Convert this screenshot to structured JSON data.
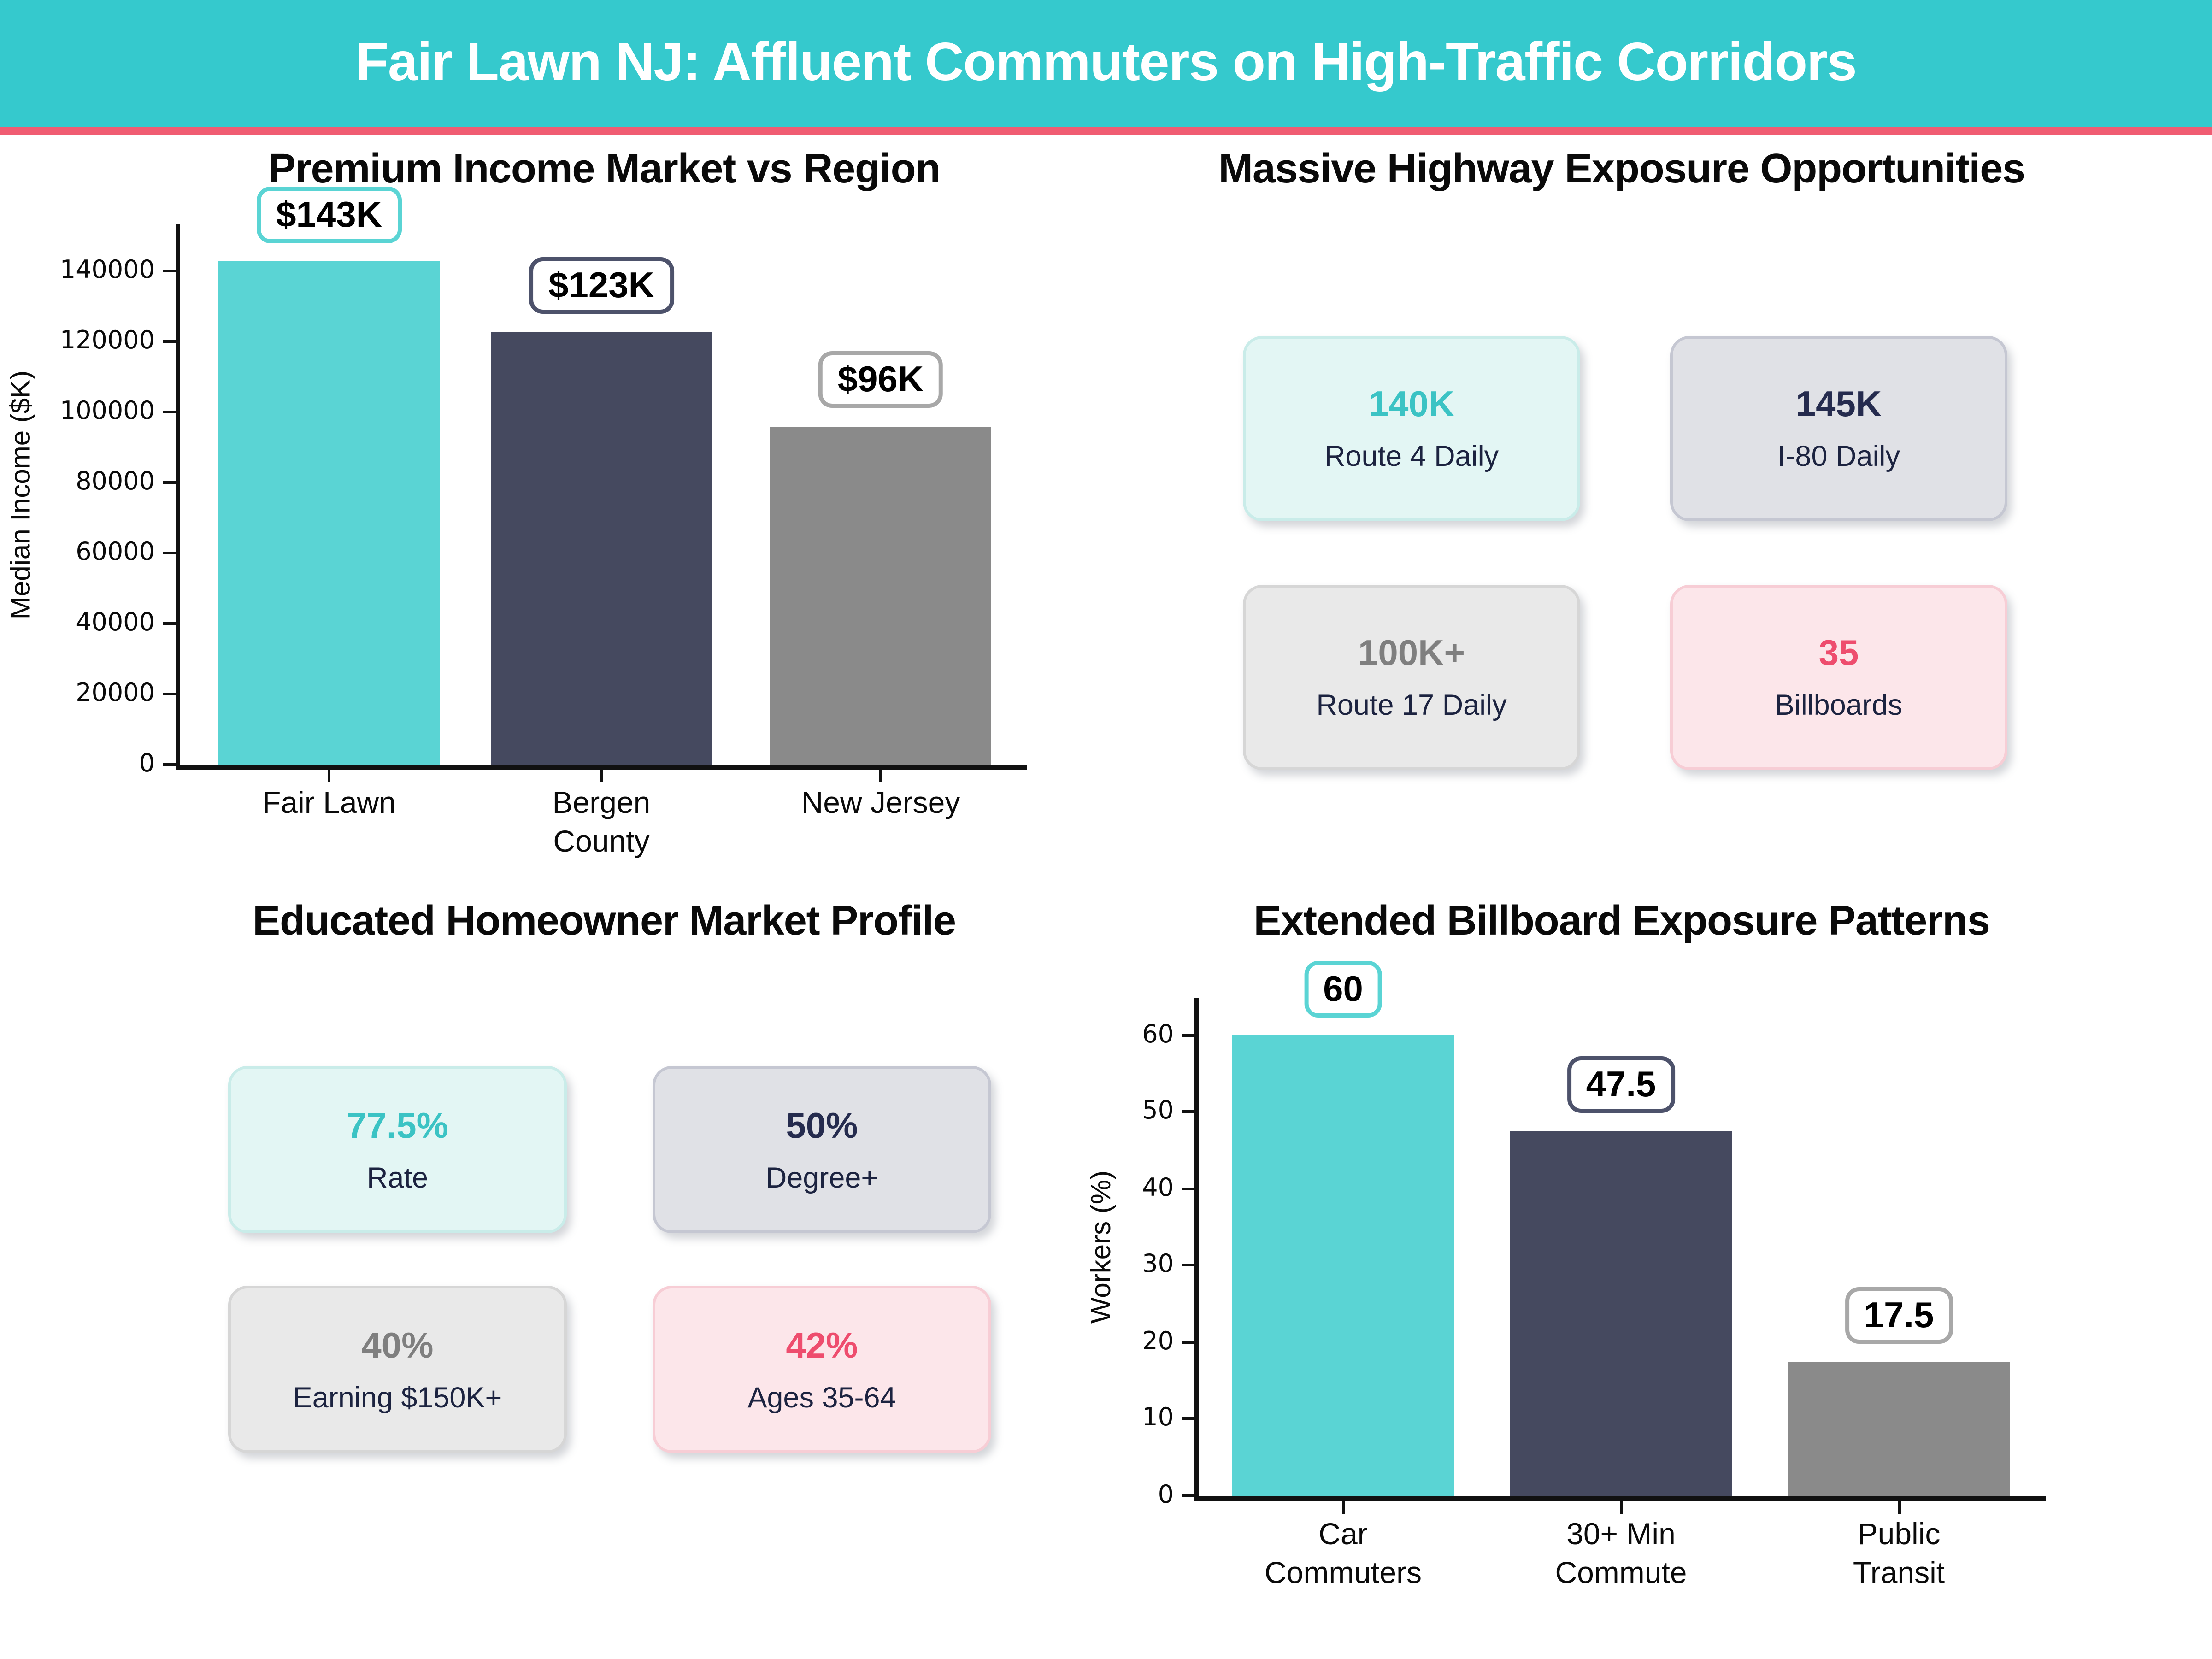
{
  "header": {
    "title": "Fair Lawn NJ: Affluent Commuters on High-Traffic Corridors",
    "bg_color": "#35c9cd",
    "accent_color": "#f05c72"
  },
  "colors": {
    "bar_teal": "#5ad4d4",
    "bar_navy": "#45495f",
    "bar_gray": "#8a8a8a",
    "annotation_border_teal": "#5ad4d4",
    "annotation_border_navy": "#4d526b",
    "annotation_border_gray": "#a8a8a8",
    "card_label": "#1c2340",
    "themes": {
      "teal": {
        "value": "#3bc3c4",
        "bg": "#e3f6f4",
        "border": "#c9ece9"
      },
      "navy": {
        "value": "#252b4e",
        "bg": "#e0e1e6",
        "border": "#c5c7d2"
      },
      "gray": {
        "value": "#7f7f7f",
        "bg": "#e9e9e9",
        "border": "#d6d6d6"
      },
      "pink": {
        "value": "#ee4d6e",
        "bg": "#fce6ea",
        "border": "#f7cdd5"
      }
    }
  },
  "chart_data": [
    {
      "type": "bar",
      "title": "Premium Income Market vs Region",
      "xlabel": "",
      "ylabel": "Median Income ($K)",
      "categories": [
        "Fair Lawn",
        "Bergen\nCounty",
        "New Jersey"
      ],
      "values": [
        143000,
        123000,
        96000
      ],
      "bar_labels": [
        "$143K",
        "$123K",
        "$96K"
      ],
      "bar_color_keys": [
        "teal",
        "navy",
        "gray"
      ],
      "yticks": [
        0,
        20000,
        40000,
        60000,
        80000,
        100000,
        120000,
        140000
      ],
      "ylim": [
        0,
        153500
      ],
      "grid": false,
      "legend": "none"
    },
    {
      "type": "bar",
      "title": "Extended Billboard Exposure Patterns",
      "xlabel": "",
      "ylabel": "Workers (%)",
      "categories": [
        "Car\nCommuters",
        "30+ Min\nCommute",
        "Public\nTransit"
      ],
      "values": [
        60,
        47.5,
        17.5
      ],
      "bar_labels": [
        "60",
        "47.5",
        "17.5"
      ],
      "bar_color_keys": [
        "teal",
        "navy",
        "gray"
      ],
      "yticks": [
        0,
        10,
        20,
        30,
        40,
        50,
        60
      ],
      "ylim": [
        0,
        64.8
      ],
      "grid": false,
      "legend": "none"
    }
  ],
  "panels": [
    {
      "title": "Massive Highway Exposure Opportunities",
      "cards": [
        {
          "value": "140K",
          "label": "Route 4 Daily",
          "theme": "teal"
        },
        {
          "value": "145K",
          "label": "I-80 Daily",
          "theme": "navy"
        },
        {
          "value": "100K+",
          "label": "Route 17 Daily",
          "theme": "gray"
        },
        {
          "value": "35",
          "label": "Billboards",
          "theme": "pink"
        }
      ]
    },
    {
      "title": "Educated Homeowner Market Profile",
      "cards": [
        {
          "value": "77.5%",
          "label": "Rate",
          "theme": "teal"
        },
        {
          "value": "50%",
          "label": "Degree+",
          "theme": "navy"
        },
        {
          "value": "40%",
          "label": "Earning $150K+",
          "theme": "gray"
        },
        {
          "value": "42%",
          "label": "Ages 35-64",
          "theme": "pink"
        }
      ]
    }
  ]
}
